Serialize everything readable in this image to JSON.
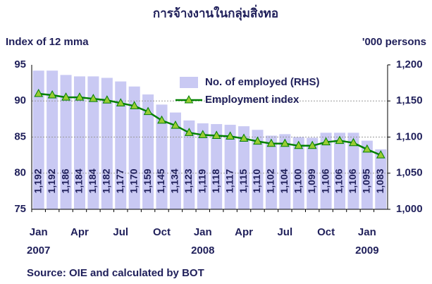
{
  "chart_data": {
    "type": "bar_line",
    "title": "การจ้างงานในกลุ่มสิ่งทอ",
    "y_label": "Index of 12 mma",
    "y2_label": "'000 persons",
    "source": "Source: OIE and calculated by BOT",
    "categories": [
      "Jan\n2007",
      null,
      null,
      "Apr",
      null,
      null,
      "Jul",
      null,
      null,
      "Oct",
      null,
      null,
      "Jan\n2008",
      null,
      null,
      "Apr",
      null,
      null,
      "Jul",
      null,
      null,
      "Oct",
      null,
      null,
      "Jan\n2009",
      null
    ],
    "series": [
      {
        "name": "No. of employed (RHS)",
        "type": "bar",
        "axis": "y2",
        "color": "#c9c9f3",
        "values": [
          1192,
          1192,
          1186,
          1184,
          1184,
          1182,
          1177,
          1170,
          1159,
          1145,
          1134,
          1123,
          1119,
          1118,
          1117,
          1115,
          1110,
          1102,
          1104,
          1100,
          1099,
          1106,
          1106,
          1106,
          1095,
          1083
        ],
        "value_labels": [
          "1,192",
          "1,192",
          "1,186",
          "1,184",
          "1,184",
          "1,182",
          "1,177",
          "1,170",
          "1,159",
          "1,145",
          "1,134",
          "1,123",
          "1,119",
          "1,118",
          "1,117",
          "1,115",
          "1,110",
          "1,102",
          "1,104",
          "1,100",
          "1,099",
          "1,106",
          "1,106",
          "1,106",
          "1,095",
          "1,083"
        ]
      },
      {
        "name": "Employment index",
        "type": "line",
        "axis": "y",
        "color": "#008000",
        "marker_color": "#99cc33",
        "values": [
          91,
          90.8,
          90.5,
          90.5,
          90.3,
          90.1,
          89.7,
          89.3,
          88.5,
          87.3,
          86.6,
          85.6,
          85.3,
          85.2,
          85.1,
          84.8,
          84.4,
          84.1,
          84.1,
          83.8,
          83.8,
          84.3,
          84.5,
          84.2,
          83.3,
          82.5
        ]
      }
    ],
    "ylim": [
      75,
      95
    ],
    "yticks": [
      75,
      80,
      85,
      90,
      95
    ],
    "y2lim": [
      1000,
      1200
    ],
    "y2ticks": [
      {
        "value": 1000,
        "label": "1,000"
      },
      {
        "value": 1050,
        "label": "1,050"
      },
      {
        "value": 1100,
        "label": "1,100"
      },
      {
        "value": 1150,
        "label": "1,150"
      },
      {
        "value": 1200,
        "label": "1,200"
      }
    ],
    "grid": true,
    "legend": "upper right"
  }
}
